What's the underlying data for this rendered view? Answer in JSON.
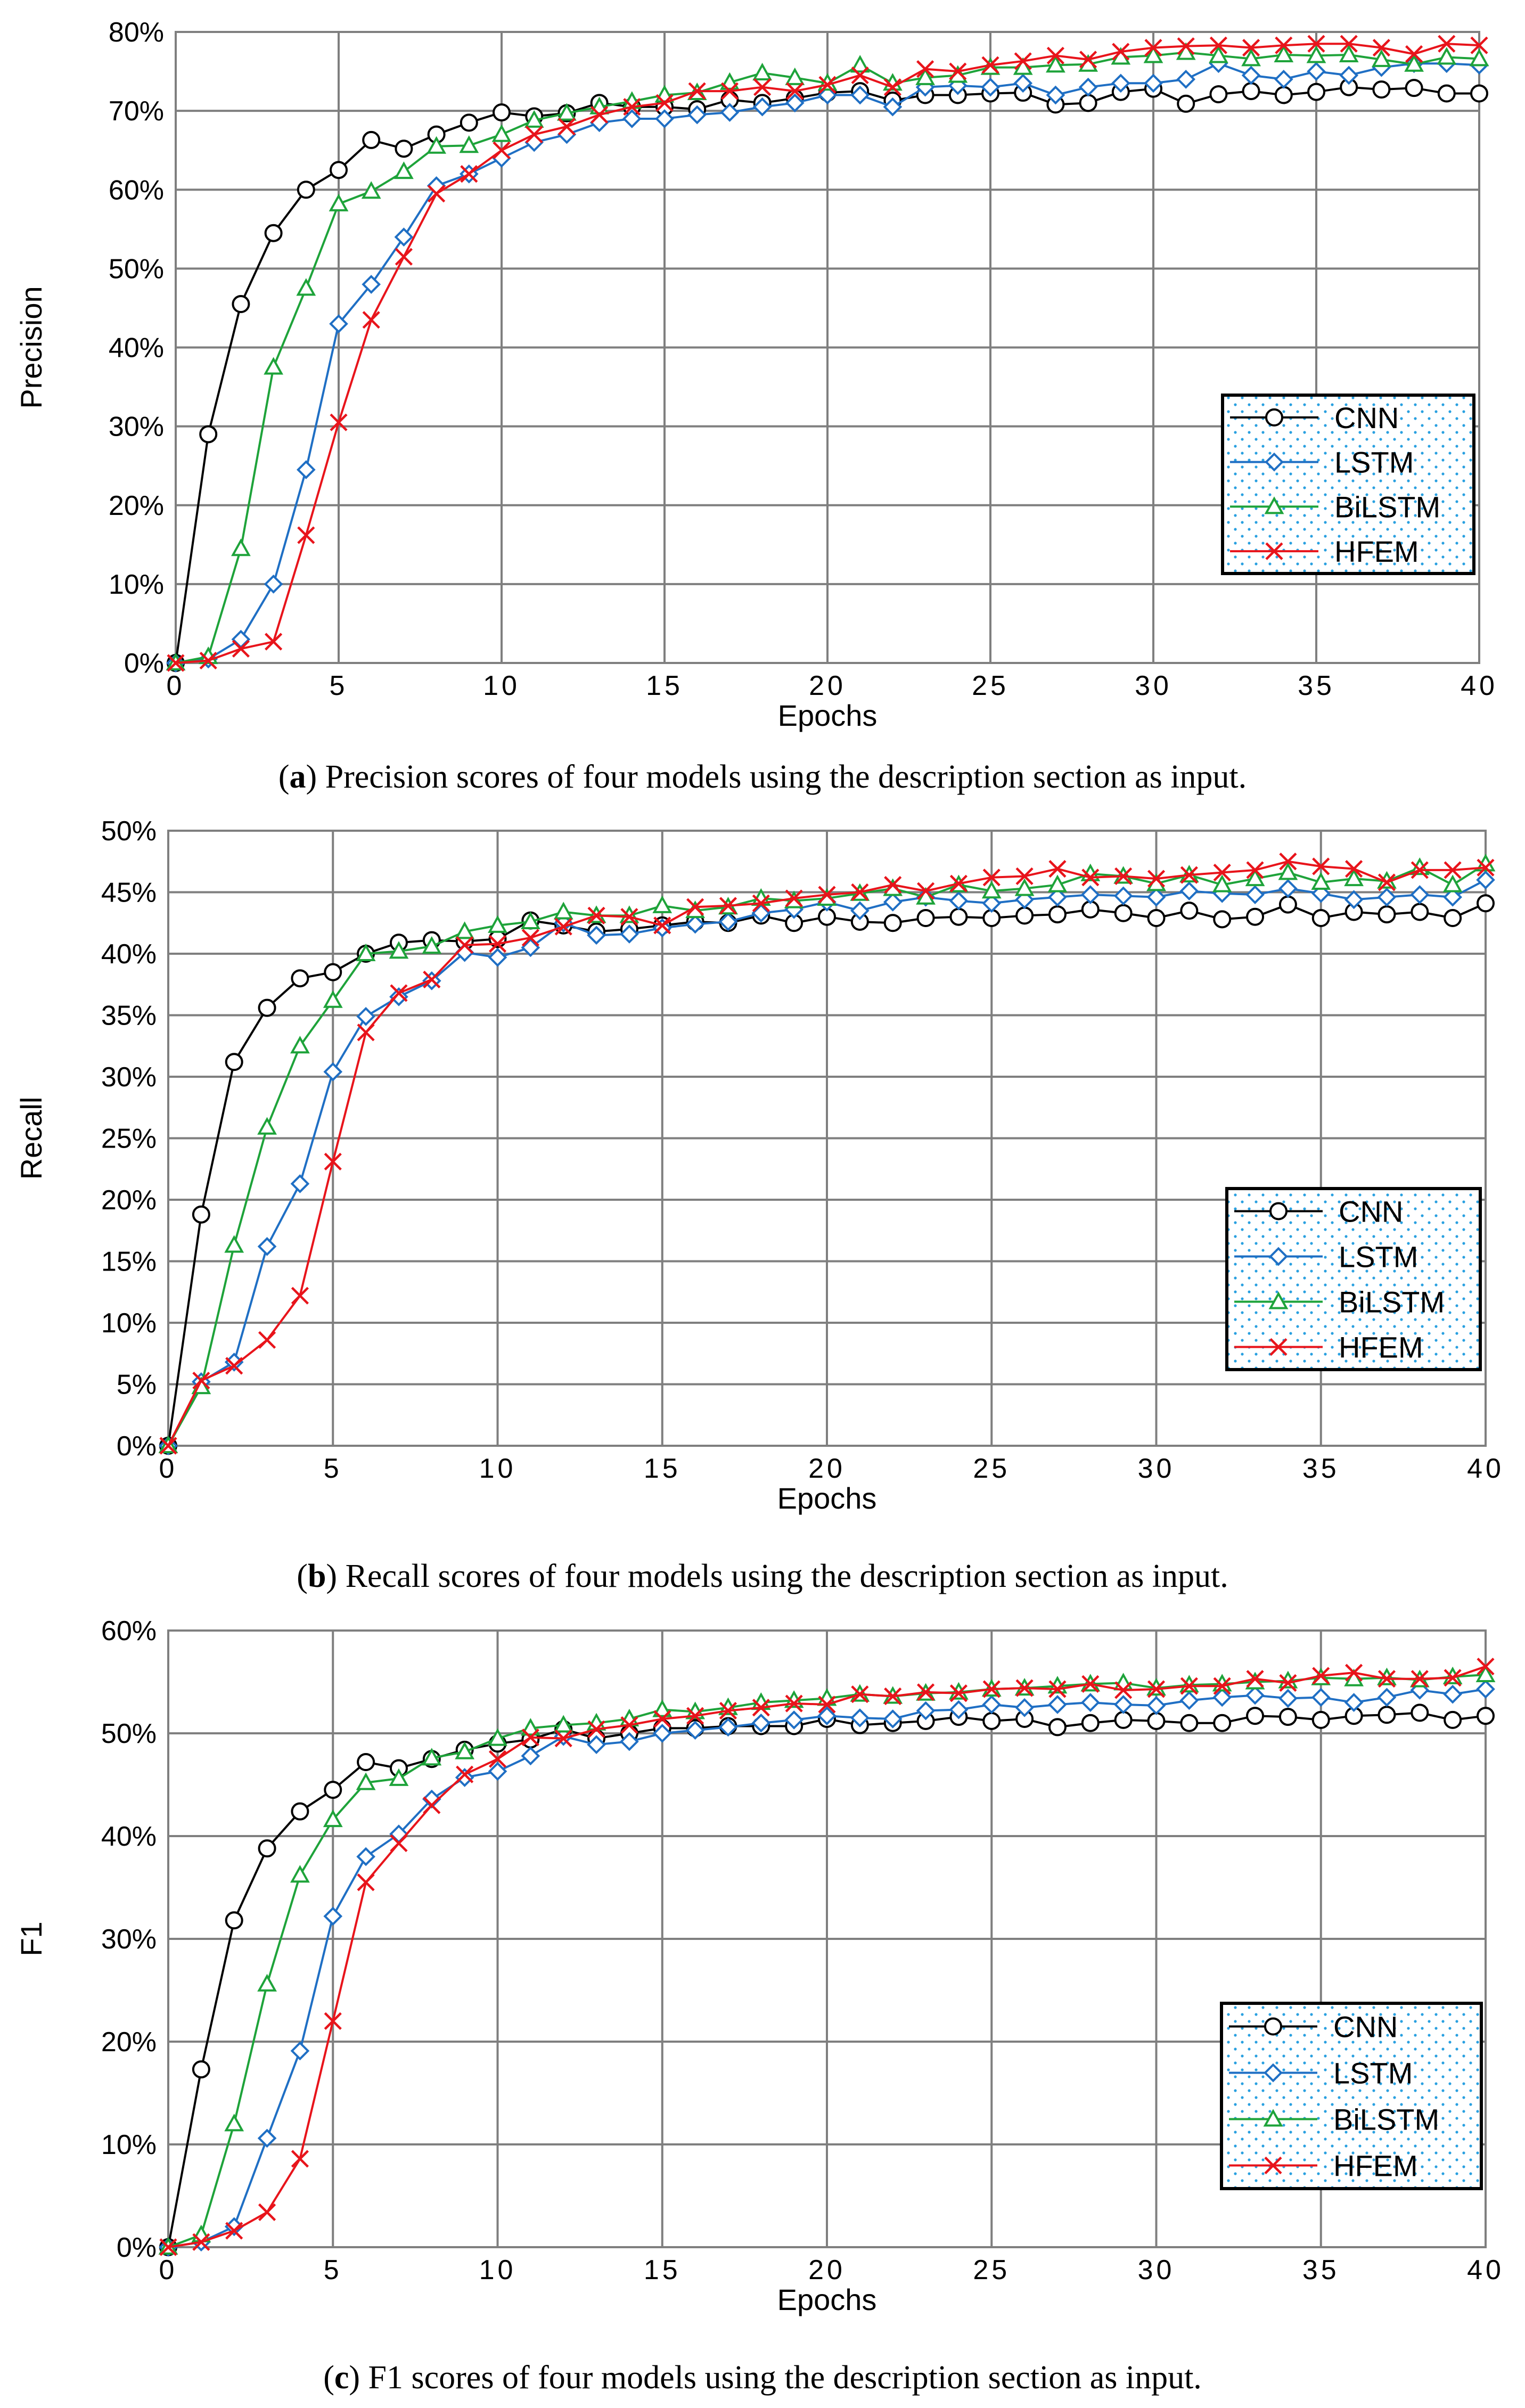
{
  "chart_data": [
    {
      "type": "line",
      "panel": "a",
      "caption_letter": "a",
      "caption_text": "Precision scores of four models using the description section as input.",
      "xlabel": "Epochs",
      "ylabel": "Precision",
      "xlim": [
        0,
        40
      ],
      "ylim": [
        0,
        80
      ],
      "yticks": [
        "0%",
        "10%",
        "20%",
        "30%",
        "40%",
        "50%",
        "60%",
        "70%",
        "80%"
      ],
      "xticks": [
        "0",
        "5",
        "10",
        "15",
        "20",
        "25",
        "30",
        "35",
        "40"
      ],
      "grid": true,
      "legend_position": "right-middle",
      "series": [
        {
          "name": "CNN",
          "color": "#000000",
          "marker": "circle",
          "values": [
            0,
            29,
            45.5,
            54.5,
            60,
            62.5,
            66.3,
            65.2,
            67,
            68.5,
            69.8,
            69.3,
            69.7,
            71,
            70.5,
            70.5,
            70.2,
            71.4,
            71,
            71.6,
            72.3,
            72.5,
            71.3,
            72,
            72,
            72.2,
            72.3,
            70.8,
            71,
            72.4,
            72.8,
            70.9,
            72.1,
            72.5,
            72,
            72.4,
            73,
            72.7,
            72.9,
            72.2,
            72.2
          ]
        },
        {
          "name": "LSTM",
          "color": "#1f6fc4",
          "marker": "diamond",
          "values": [
            0,
            0.5,
            3,
            10,
            24.5,
            43,
            48,
            54,
            60.5,
            62,
            64,
            66,
            67,
            68.5,
            69,
            69,
            69.5,
            69.8,
            70.5,
            71,
            72,
            72,
            70.5,
            73,
            73.2,
            73,
            73.5,
            72,
            73,
            73.5,
            73.5,
            74,
            76,
            74.5,
            74,
            75,
            74.5,
            75.5,
            76,
            76,
            75.8
          ]
        },
        {
          "name": "BiLSTM",
          "color": "#1ea33a",
          "marker": "triangle",
          "values": [
            0,
            0.8,
            14.5,
            37.5,
            47.5,
            58.2,
            59.8,
            62.3,
            65.5,
            65.6,
            67,
            68.8,
            69.7,
            70.5,
            71.2,
            72,
            72.3,
            73.6,
            74.8,
            74.2,
            73.5,
            75.8,
            73.5,
            74.2,
            74.5,
            75.5,
            75.5,
            75.8,
            75.9,
            76.8,
            77,
            77.4,
            77,
            76.6,
            77.1,
            77,
            77.1,
            76.5,
            75.9,
            76.8,
            76.6
          ]
        },
        {
          "name": "HFEM",
          "color": "#e8141b",
          "marker": "x",
          "values": [
            0,
            0.3,
            1.8,
            2.7,
            16.2,
            30.5,
            43.5,
            51.5,
            59.5,
            62,
            65,
            67,
            68,
            69.5,
            70.5,
            71,
            72.5,
            72.5,
            73,
            72.5,
            73.3,
            74.5,
            73,
            75.3,
            75,
            75.8,
            76.3,
            77,
            76.5,
            77.5,
            78,
            78.2,
            78.3,
            78,
            78.3,
            78.5,
            78.5,
            78,
            77.2,
            78.5,
            78.3
          ]
        }
      ]
    },
    {
      "type": "line",
      "panel": "b",
      "caption_letter": "b",
      "caption_text": "Recall scores of four models using the description section as input.",
      "xlabel": "Epochs",
      "ylabel": "Recall",
      "xlim": [
        0,
        40
      ],
      "ylim": [
        0,
        50
      ],
      "yticks": [
        "0%",
        "5%",
        "10%",
        "15%",
        "20%",
        "25%",
        "30%",
        "35%",
        "40%",
        "45%",
        "50%"
      ],
      "xticks": [
        "0",
        "5",
        "10",
        "15",
        "20",
        "25",
        "30",
        "35",
        "40"
      ],
      "grid": true,
      "legend_position": "right-lower",
      "series": [
        {
          "name": "CNN",
          "color": "#000000",
          "marker": "circle",
          "values": [
            0,
            18.8,
            31.2,
            35.6,
            38,
            38.5,
            40,
            40.9,
            41.1,
            41,
            41.2,
            42.7,
            42.3,
            41.8,
            42,
            42.3,
            42.6,
            42.5,
            43.1,
            42.5,
            43,
            42.6,
            42.5,
            42.9,
            43,
            42.9,
            43.1,
            43.2,
            43.6,
            43.3,
            42.9,
            43.5,
            42.8,
            43,
            44,
            42.9,
            43.4,
            43.2,
            43.4,
            42.9,
            44.1
          ]
        },
        {
          "name": "LSTM",
          "color": "#1f6fc4",
          "marker": "diamond",
          "values": [
            0,
            5.2,
            6.8,
            16.2,
            21.3,
            30.4,
            34.9,
            36.5,
            37.8,
            40.1,
            39.7,
            40.5,
            42.5,
            41.5,
            41.6,
            42.1,
            42.4,
            42.6,
            43.3,
            43.6,
            44.2,
            43.5,
            44.2,
            44.6,
            44.3,
            44.1,
            44.4,
            44.6,
            44.8,
            44.7,
            44.6,
            45.1,
            44.9,
            44.8,
            45.3,
            44.9,
            44.4,
            44.6,
            44.8,
            44.6,
            46
          ]
        },
        {
          "name": "BiLSTM",
          "color": "#1ea33a",
          "marker": "triangle",
          "values": [
            0,
            4.8,
            16.3,
            25.9,
            32.5,
            36.2,
            40,
            40.2,
            40.6,
            41.8,
            42.3,
            42.6,
            43.4,
            43.1,
            43.1,
            43.9,
            43.5,
            43.8,
            44.5,
            44.3,
            44.5,
            44.9,
            45.3,
            44.6,
            45.6,
            45.1,
            45.3,
            45.6,
            46.5,
            46.3,
            45.7,
            46.4,
            45.6,
            46.1,
            46.6,
            45.8,
            46.1,
            45.9,
            47,
            45.6,
            47.3
          ]
        },
        {
          "name": "HFEM",
          "color": "#e8141b",
          "marker": "x",
          "values": [
            0,
            5.3,
            6.5,
            8.6,
            12.2,
            23.1,
            33.6,
            36.8,
            37.9,
            40.7,
            40.8,
            41.3,
            42.2,
            43.1,
            43,
            42.3,
            43.8,
            43.9,
            44.1,
            44.5,
            44.8,
            45,
            45.6,
            45.1,
            45.7,
            46.2,
            46.3,
            46.9,
            46.2,
            46.3,
            46.1,
            46.4,
            46.6,
            46.8,
            47.5,
            47.1,
            46.9,
            45.8,
            46.8,
            46.8,
            47
          ]
        }
      ]
    },
    {
      "type": "line",
      "panel": "c",
      "caption_letter": "c",
      "caption_text": "F1 scores of four models using the description section as input.",
      "xlabel": "Epochs",
      "ylabel": "F1",
      "xlim": [
        0,
        40
      ],
      "ylim": [
        0,
        60
      ],
      "yticks": [
        "0%",
        "10%",
        "20%",
        "30%",
        "40%",
        "50%",
        "60%"
      ],
      "xticks": [
        "0",
        "5",
        "10",
        "15",
        "20",
        "25",
        "30",
        "35",
        "40"
      ],
      "grid": true,
      "legend_position": "right-lower",
      "series": [
        {
          "name": "CNN",
          "color": "#000000",
          "marker": "circle",
          "values": [
            0,
            17.3,
            31.8,
            38.8,
            42.4,
            44.5,
            47.2,
            46.6,
            47.5,
            48.4,
            49,
            49.4,
            50.4,
            49.5,
            50,
            50.5,
            50.5,
            50.7,
            50.7,
            50.7,
            51.4,
            50.8,
            51,
            51.2,
            51.6,
            51.2,
            51.4,
            50.6,
            51,
            51.3,
            51.2,
            51,
            51,
            51.7,
            51.6,
            51.3,
            51.7,
            51.8,
            52,
            51.3,
            51.7
          ]
        },
        {
          "name": "LSTM",
          "color": "#1f6fc4",
          "marker": "diamond",
          "values": [
            0,
            0.5,
            2,
            10.6,
            19.1,
            32.2,
            38,
            40.2,
            43.6,
            45.7,
            46.3,
            47.8,
            49.7,
            48.9,
            49.2,
            50,
            50.3,
            50.6,
            51,
            51.3,
            51.7,
            51.5,
            51.4,
            52.2,
            52.3,
            52.8,
            52.5,
            52.8,
            53,
            52.8,
            52.7,
            53.2,
            53.5,
            53.7,
            53.4,
            53.5,
            53,
            53.5,
            54.2,
            53.8,
            54.3
          ]
        },
        {
          "name": "BiLSTM",
          "color": "#1ea33a",
          "marker": "triangle",
          "values": [
            0,
            1.2,
            12,
            25.6,
            36.2,
            41.6,
            45.2,
            45.6,
            47.6,
            48.2,
            49.5,
            50.5,
            50.8,
            51,
            51.4,
            52.3,
            52.1,
            52.5,
            53,
            53.2,
            53.4,
            53.8,
            53.6,
            53.9,
            54,
            54.3,
            54.4,
            54.6,
            54.8,
            54.9,
            54.4,
            54.7,
            54.8,
            55,
            55.1,
            55.4,
            55.3,
            55.4,
            55.2,
            55.5,
            55.7
          ]
        },
        {
          "name": "HFEM",
          "color": "#e8141b",
          "marker": "x",
          "values": [
            0,
            0.5,
            1.6,
            3.4,
            8.6,
            22,
            35.5,
            39.3,
            43,
            46,
            47.5,
            49.6,
            49.5,
            50.4,
            50.8,
            51.4,
            51.7,
            52.2,
            52.5,
            52.9,
            52.8,
            53.8,
            53.6,
            54,
            53.9,
            54.3,
            54.4,
            54.3,
            54.8,
            54.2,
            54.3,
            54.6,
            54.6,
            55.3,
            54.9,
            55.6,
            55.9,
            55.3,
            55.3,
            55.4,
            56.5
          ]
        }
      ]
    }
  ]
}
